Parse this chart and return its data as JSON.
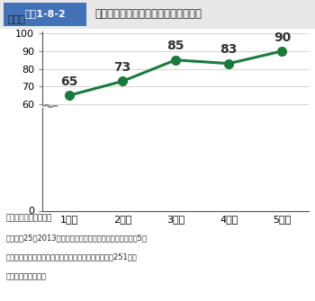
{
  "header_label": "図表1-8-2",
  "header_title": "農林水産物等と新商品の売上高平均額",
  "ylabel": "百万円",
  "x_labels": [
    "1年目",
    "2年目",
    "3年目",
    "4年目",
    "5年目"
  ],
  "x_values": [
    1,
    2,
    3,
    4,
    5
  ],
  "y_values": [
    65,
    73,
    85,
    83,
    90
  ],
  "yticks": [
    0,
    60,
    70,
    80,
    90,
    100
  ],
  "yticklabels": [
    "0",
    "60",
    "70",
    "80",
    "90",
    "100"
  ],
  "ylim_display": [
    58,
    101
  ],
  "line_color": "#1a7a3c",
  "marker_face": "#1a7a3c",
  "marker_edge": "#1a7a3c",
  "marker_size": 7,
  "line_width": 2.2,
  "annotation_fontsize": 10,
  "header_bg_color": "#4472b8",
  "header_text_color": "#ffffff",
  "title_text_color": "#222222",
  "grid_color": "#cccccc",
  "source_text": "資料：農林水産省作成",
  "note_line1": "注：平成25（2013）年度までに総合化事業の認定を受け、5年",
  "note_line2": "　間取り組んでいる事業者のうち、有効回答を行った251事業",
  "note_line3": "　者の売上高平均額"
}
